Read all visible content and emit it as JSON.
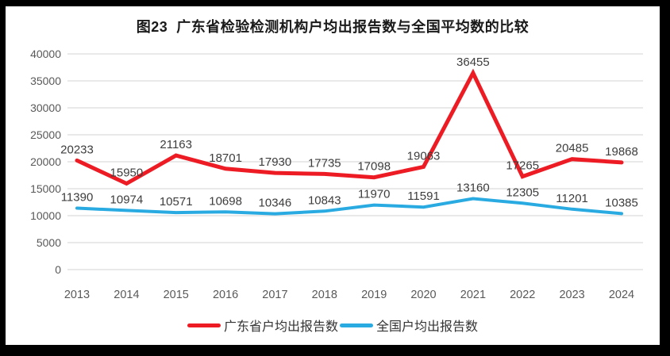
{
  "chart_data": {
    "type": "line",
    "title": "图23  广东省检验检测机构户均出报告数与全国平均数的比较",
    "xlabel": "",
    "ylabel": "",
    "categories": [
      "2013",
      "2014",
      "2015",
      "2016",
      "2017",
      "2018",
      "2019",
      "2020",
      "2021",
      "2022",
      "2023",
      "2024"
    ],
    "series": [
      {
        "name": "广东省户均出报告数",
        "color": "#ED1C24",
        "stroke_width": 5,
        "values": [
          20233,
          15950,
          21163,
          18701,
          17930,
          17735,
          17098,
          19063,
          36455,
          17265,
          20485,
          19868
        ]
      },
      {
        "name": "全国户均出报告数",
        "color": "#29ABE2",
        "stroke_width": 4,
        "values": [
          11390,
          10974,
          10571,
          10698,
          10346,
          10843,
          11970,
          11591,
          13160,
          12305,
          11201,
          10385
        ]
      }
    ],
    "ylim": [
      0,
      40000
    ],
    "ytick_step": 5000,
    "grid": true,
    "data_labels": true,
    "legend_position": "bottom"
  },
  "colors": {
    "background": "#000000",
    "panel": "#ffffff",
    "gridline": "#DCDCDC",
    "axis_text": "#595959",
    "data_label_text": "#3D3D3D"
  }
}
